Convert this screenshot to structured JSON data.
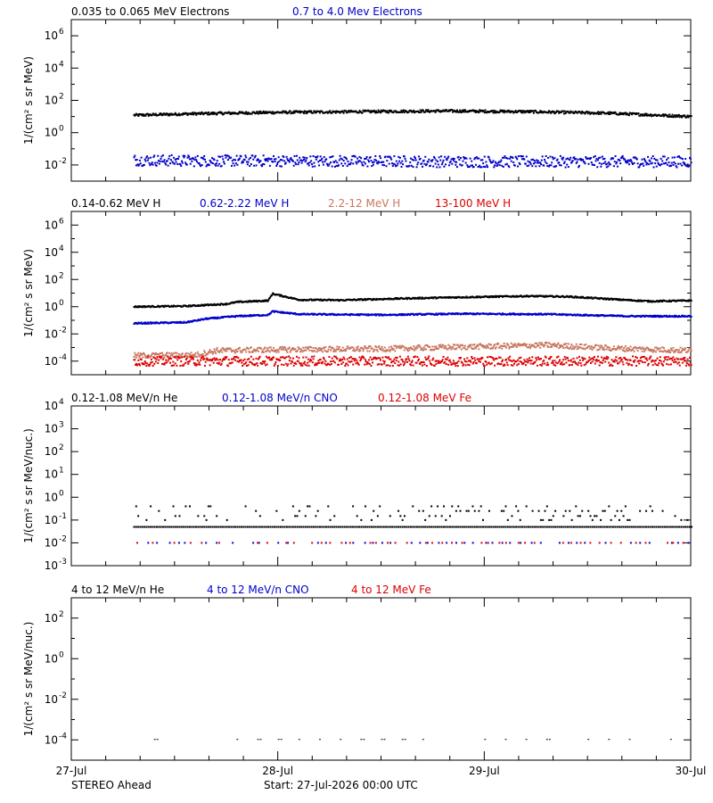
{
  "footer": {
    "spacecraft": "STEREO Ahead",
    "start": "Start: 27-Jul-2026 00:00 UTC"
  },
  "x_axis": {
    "ticks": [
      {
        "day": 0,
        "label": "27-Jul"
      },
      {
        "day": 1,
        "label": "28-Jul"
      },
      {
        "day": 2,
        "label": "29-Jul"
      },
      {
        "day": 3,
        "label": "30-Jul"
      }
    ]
  },
  "chart_data": [
    {
      "type": "scatter",
      "ylabel": "1/(cm² s sr MeV)",
      "yscale": "log",
      "ylim_log10": [
        -3,
        7
      ],
      "ytick_exponents": [
        -2,
        0,
        2,
        4,
        6
      ],
      "xlim_days": [
        0,
        3
      ],
      "legend": [
        {
          "name": "0.035 to 0.065 MeV Electrons",
          "color": "#000000"
        },
        {
          "name": "0.7 to 4.0 Mev Electrons",
          "color": "#0000cc"
        }
      ],
      "series": [
        {
          "name": "0.035 to 0.065 MeV Electrons",
          "color": "#000000",
          "x": [
            0.3,
            0.6,
            1.0,
            1.4,
            1.8,
            2.2,
            2.6,
            3.0
          ],
          "y": [
            12,
            15,
            18,
            20,
            22,
            20,
            16,
            10
          ],
          "spread": 0.08
        },
        {
          "name": "0.7 to 4.0 Mev Electrons",
          "color": "#0000cc",
          "x": [
            0.3,
            0.6,
            1.0,
            1.4,
            1.8,
            2.2,
            2.6,
            3.0
          ],
          "y": [
            0.02,
            0.018,
            0.018,
            0.017,
            0.016,
            0.016,
            0.016,
            0.016
          ],
          "spread": 0.35
        }
      ]
    },
    {
      "type": "scatter",
      "ylabel": "1/(cm² s sr MeV)",
      "yscale": "log",
      "ylim_log10": [
        -5,
        7
      ],
      "ytick_exponents": [
        -4,
        -2,
        0,
        2,
        4,
        6
      ],
      "xlim_days": [
        0,
        3
      ],
      "legend": [
        {
          "name": "0.14-0.62 MeV H",
          "color": "#000000"
        },
        {
          "name": "0.62-2.22 MeV H",
          "color": "#0000cc"
        },
        {
          "name": "2.2-12 MeV H",
          "color": "#c87860"
        },
        {
          "name": "13-100 MeV H",
          "color": "#dd0000"
        }
      ],
      "series": [
        {
          "name": "0.14-0.62 MeV H",
          "color": "#000000",
          "x": [
            0.3,
            0.55,
            0.75,
            0.8,
            0.95,
            0.97,
            1.1,
            1.3,
            1.6,
            1.9,
            2.2,
            2.4,
            2.7,
            2.8,
            3.0
          ],
          "y": [
            1.0,
            1.1,
            1.6,
            2.2,
            2.8,
            9.0,
            3.2,
            3.0,
            4.0,
            5.0,
            6.0,
            5.5,
            3.0,
            2.5,
            2.8
          ],
          "spread": 0.05
        },
        {
          "name": "0.62-2.22 MeV H",
          "color": "#0000cc",
          "x": [
            0.3,
            0.55,
            0.65,
            0.8,
            0.95,
            0.97,
            1.1,
            1.5,
            1.9,
            2.3,
            2.7,
            3.0
          ],
          "y": [
            0.06,
            0.07,
            0.13,
            0.2,
            0.25,
            0.45,
            0.28,
            0.25,
            0.3,
            0.28,
            0.2,
            0.2
          ],
          "spread": 0.05
        },
        {
          "name": "2.2-12 MeV H",
          "color": "#c87860",
          "x": [
            0.3,
            0.6,
            0.7,
            1.0,
            1.5,
            2.0,
            2.3,
            2.6,
            3.0
          ],
          "y": [
            0.00025,
            0.00028,
            0.0006,
            0.0007,
            0.0008,
            0.0012,
            0.0015,
            0.0009,
            0.0006
          ],
          "spread": 0.2
        },
        {
          "name": "13-100 MeV H",
          "color": "#dd0000",
          "x": [
            0.3,
            1.0,
            2.0,
            3.0
          ],
          "y": [
            0.0001,
            0.0001,
            0.0001,
            0.0001
          ],
          "spread": 0.35
        }
      ]
    },
    {
      "type": "scatter",
      "ylabel": "1/(cm² s sr MeV/nuc.)",
      "yscale": "log",
      "ylim_log10": [
        -3,
        4
      ],
      "ytick_exponents": [
        -3,
        -2,
        -1,
        0,
        1,
        2,
        3,
        4
      ],
      "xlim_days": [
        0,
        3
      ],
      "legend": [
        {
          "name": "0.12-1.08 MeV/n He",
          "color": "#000000"
        },
        {
          "name": "0.12-1.08 MeV/n CNO",
          "color": "#0000cc"
        },
        {
          "name": "0.12-1.08 MeV Fe",
          "color": "#dd0000"
        }
      ],
      "series": [
        {
          "name": "0.12-1.08 MeV/n He",
          "color": "#000000",
          "x": [
            0.3,
            3.0
          ],
          "y": [
            0.05,
            0.05
          ],
          "levels": [
            0.05,
            0.1,
            0.15,
            0.25,
            0.4
          ]
        },
        {
          "name": "0.12-1.08 MeV/n CNO",
          "color": "#0000cc",
          "x": [
            0.3,
            3.0
          ],
          "y": [
            0.01,
            0.01
          ]
        },
        {
          "name": "0.12-1.08 MeV Fe",
          "color": "#dd0000",
          "x": [
            0.3,
            3.0
          ],
          "y": [
            0.01,
            0.01
          ]
        }
      ]
    },
    {
      "type": "scatter",
      "ylabel": "1/(cm² s sr MeV/nuc.)",
      "yscale": "log",
      "ylim_log10": [
        -5,
        3
      ],
      "ytick_exponents": [
        -4,
        -2,
        0,
        2
      ],
      "xlim_days": [
        0,
        3
      ],
      "legend": [
        {
          "name": "4 to 12 MeV/n He",
          "color": "#000000"
        },
        {
          "name": "4 to 12 MeV/n CNO",
          "color": "#0000cc"
        },
        {
          "name": "4 to 12 MeV Fe",
          "color": "#dd0000"
        }
      ],
      "series": [
        {
          "name": "4 to 12 MeV/n He",
          "color": "#000000",
          "x": [
            0.4,
            0.8,
            0.9,
            1.0,
            1.1,
            1.2,
            1.3,
            1.4,
            1.5,
            1.6,
            1.7,
            2.0,
            2.1,
            2.2,
            2.3,
            2.5,
            2.6,
            2.7,
            2.9
          ],
          "y": [
            0.0001,
            0.0001,
            0.0001,
            0.0001,
            0.0001,
            0.0001,
            0.0001,
            0.0001,
            0.0001,
            0.0001,
            0.0001,
            0.0001,
            0.0001,
            0.0001,
            0.0001,
            0.0001,
            0.0001,
            0.0001,
            0.0001
          ]
        }
      ]
    }
  ]
}
